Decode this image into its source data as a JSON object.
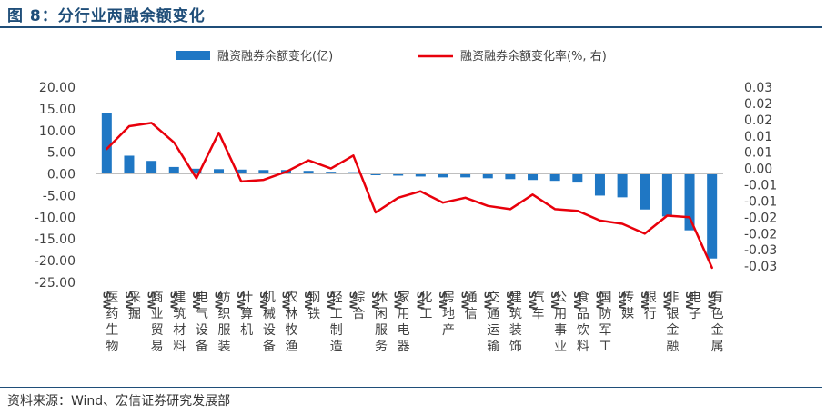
{
  "figure": {
    "title": "图 8：分行业两融余额变化",
    "source": "资料来源：Wind、宏信证券研究发展部"
  },
  "colors": {
    "bar": "#1f77c4",
    "line": "#e8000b",
    "axis": "#bfbfbf",
    "title": "#1f4e79"
  },
  "chart_data": {
    "type": "bar",
    "categories": [
      "SW医药生物",
      "SW采掘",
      "SW商业贸易",
      "SW建筑材料",
      "SW电气设备",
      "SW纺织服装",
      "SW计算机",
      "SW机械设备",
      "SW农林牧渔",
      "SW钢铁",
      "SW轻工制造",
      "SW综合",
      "SW休闲服务",
      "SW家用电器",
      "SW化工",
      "SW房地产",
      "SW通信",
      "SW交通运输",
      "SW建筑装饰",
      "SW汽车",
      "SW公用事业",
      "SW食品饮料",
      "SW国防军工",
      "SW传媒",
      "SW银行",
      "SW非银金融",
      "SW电子",
      "SW有色金属"
    ],
    "series": [
      {
        "name": "融资融券余额变化(亿)",
        "type": "bar",
        "axis": "left",
        "values": [
          14.0,
          4.2,
          3.0,
          1.6,
          1.2,
          1.1,
          1.0,
          0.9,
          0.9,
          0.7,
          0.5,
          0.4,
          -0.3,
          -0.4,
          -0.6,
          -0.8,
          -0.8,
          -1.0,
          -1.2,
          -1.4,
          -1.6,
          -2.0,
          -5.0,
          -5.4,
          -8.2,
          -9.8,
          -13.0,
          -19.5
        ]
      },
      {
        "name": "融资融券余额变化率(%, 右)",
        "type": "line",
        "axis": "right",
        "values": [
          0.011,
          0.018,
          0.019,
          0.013,
          0.002,
          0.016,
          0.001,
          0.0015,
          0.004,
          0.0075,
          0.005,
          0.009,
          -0.0085,
          -0.004,
          -0.002,
          -0.0055,
          -0.004,
          -0.0065,
          -0.0075,
          -0.003,
          -0.0075,
          -0.008,
          -0.011,
          -0.012,
          -0.015,
          -0.0095,
          -0.01,
          -0.0255
        ]
      }
    ],
    "y_left": {
      "min": -25,
      "max": 20,
      "step": 5,
      "tick_labels": [
        "20.00",
        "15.00",
        "10.00",
        "5.00",
        "0.00",
        "-5.00",
        "-10.00",
        "-15.00",
        "-20.00",
        "-25.00"
      ]
    },
    "y_right": {
      "min": -0.03,
      "max": 0.03,
      "step": 0.005,
      "tick_labels": [
        "0.03",
        "0.02",
        "0.02",
        "0.01",
        "0.01",
        "0.00",
        "-0.01",
        "-0.01",
        "-0.02",
        "-0.02",
        "-0.03",
        "-0.03"
      ]
    },
    "legend_position": "top-center",
    "grid": false
  }
}
